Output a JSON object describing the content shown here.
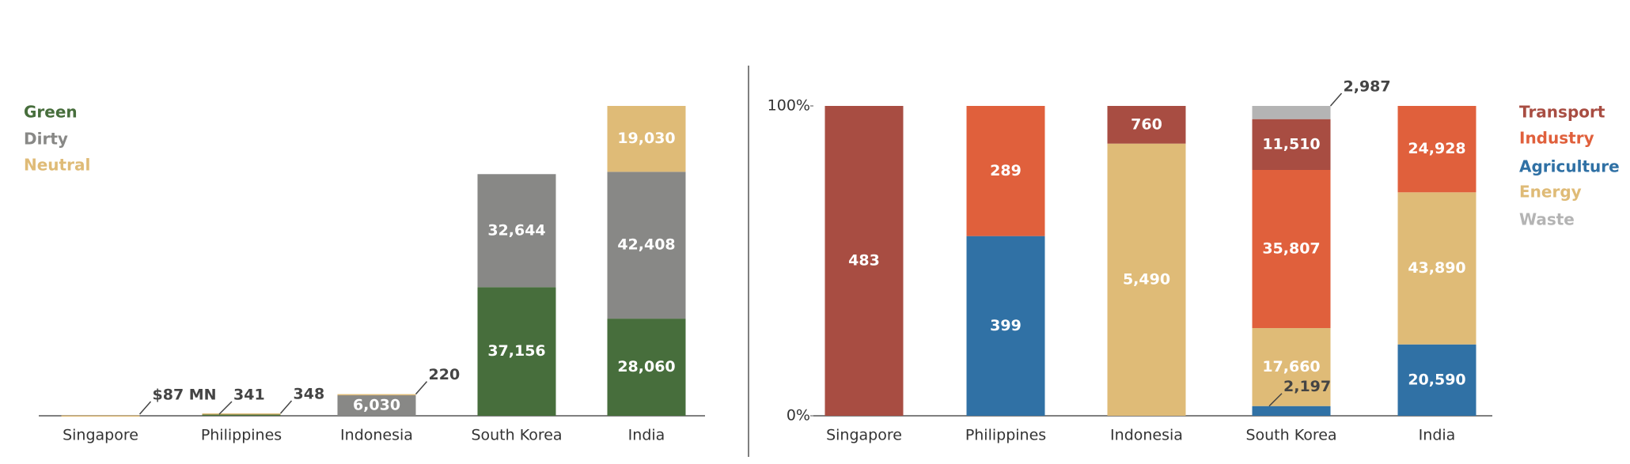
{
  "chart_data": [
    {
      "type": "bar",
      "stacked": true,
      "categories": [
        "Singapore",
        "Philippines",
        "Indonesia",
        "South Korea",
        "India"
      ],
      "series": [
        {
          "name": "Green",
          "color": "#476e3c",
          "values": [
            null,
            341,
            null,
            37156,
            28060
          ],
          "value_labels": [
            null,
            "341",
            null,
            "37,156",
            "28,060"
          ]
        },
        {
          "name": "Dirty",
          "color": "#888886",
          "values": [
            null,
            null,
            6030,
            32644,
            42408
          ],
          "value_labels": [
            null,
            null,
            "6,030",
            "32,644",
            "42,408"
          ]
        },
        {
          "name": "Neutral",
          "color": "#dfbb77",
          "values": [
            87,
            348,
            220,
            null,
            19030
          ],
          "value_labels": [
            "$87 MN",
            "348",
            "220",
            null,
            "19,030"
          ]
        }
      ]
    },
    {
      "type": "bar",
      "stacked": "percent",
      "categories": [
        "Singapore",
        "Philippines",
        "Indonesia",
        "South Korea",
        "India"
      ],
      "ylim": [
        0,
        100
      ],
      "yticks": [
        {
          "value": 0,
          "label": "0%"
        },
        {
          "value": 100,
          "label": "100%"
        }
      ],
      "series": [
        {
          "name": "Transport",
          "color": "#a84d42",
          "values": [
            483,
            null,
            760,
            11510,
            null
          ],
          "value_labels": [
            null,
            null,
            null,
            "11,510",
            null
          ]
        },
        {
          "name": "Industry",
          "color": "#e0603c",
          "values": [
            null,
            289,
            null,
            35807,
            24928
          ],
          "value_labels": [
            null,
            null,
            null,
            "35,807",
            "24,928"
          ]
        },
        {
          "name": "Agriculture",
          "color": "#3071a5",
          "values": [
            null,
            399,
            null,
            2197,
            20590
          ],
          "value_labels": [
            null,
            null,
            null,
            "2,197",
            "20,590"
          ]
        },
        {
          "name": "Energy",
          "color": "#dfbb77",
          "values": [
            null,
            null,
            5490,
            17660,
            43890
          ],
          "value_labels": [
            null,
            null,
            "5,490",
            "17,660",
            "43,890"
          ]
        },
        {
          "name": "Waste",
          "color": "#b4b4b4",
          "values": [
            null,
            null,
            null,
            2987,
            null
          ],
          "value_labels": [
            null,
            null,
            null,
            "2,987",
            null
          ]
        }
      ]
    }
  ]
}
